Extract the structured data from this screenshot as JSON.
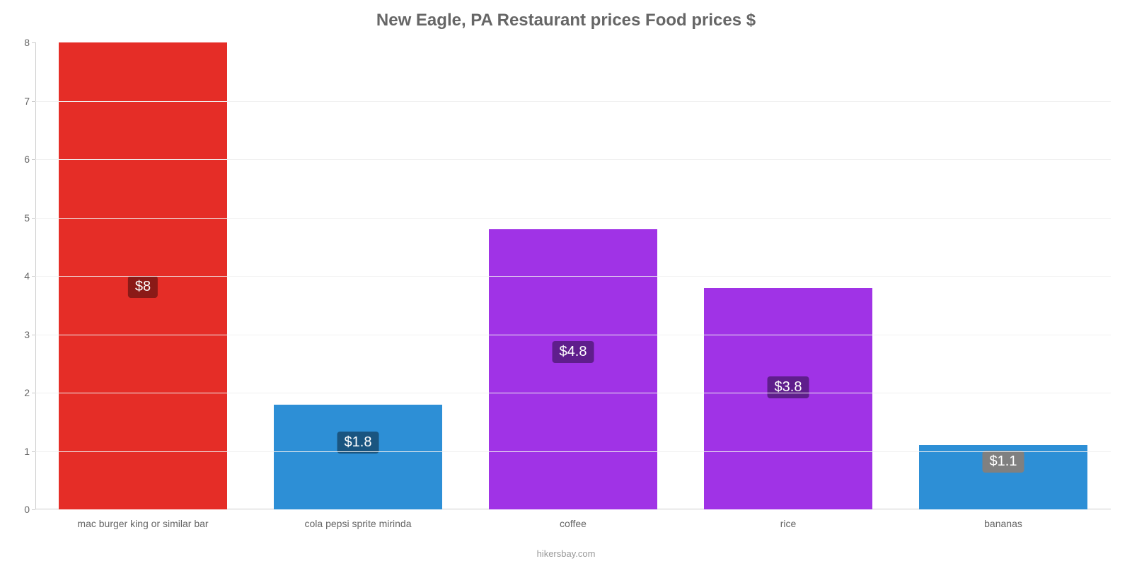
{
  "chart": {
    "type": "bar",
    "title": "New Eagle, PA Restaurant prices Food prices $",
    "title_fontsize": 24,
    "title_color": "#666666",
    "source": "hikersbay.com",
    "source_color": "#999999",
    "background_color": "#ffffff",
    "grid_color": "#f0f0f0",
    "axis_color": "#cccccc",
    "tick_label_color": "#666666",
    "tick_fontsize": 14,
    "y": {
      "min": 0,
      "max": 8,
      "step": 1
    },
    "bar_width_ratio": 0.78,
    "categories": [
      "mac burger king or similar bar",
      "cola pepsi sprite mirinda",
      "coffee",
      "rice",
      "bananas"
    ],
    "bars": [
      {
        "value": 8.0,
        "label": "$8",
        "bar_color": "#e52d27",
        "label_bg": "#8b1a17",
        "label_top_pct": 50
      },
      {
        "value": 1.8,
        "label": "$1.8",
        "bar_color": "#2d8fd6",
        "label_bg": "#1a5580",
        "label_top_pct": 26
      },
      {
        "value": 4.8,
        "label": "$4.8",
        "bar_color": "#a033e6",
        "label_bg": "#5f1e8c",
        "label_top_pct": 40
      },
      {
        "value": 3.8,
        "label": "$3.8",
        "bar_color": "#a033e6",
        "label_bg": "#5f1e8c",
        "label_top_pct": 40
      },
      {
        "value": 1.1,
        "label": "$1.1",
        "bar_color": "#2d8fd6",
        "label_bg": "#808080",
        "label_top_pct": 8
      }
    ],
    "data_label_fontsize": 20,
    "data_label_color": "#ffffff"
  }
}
